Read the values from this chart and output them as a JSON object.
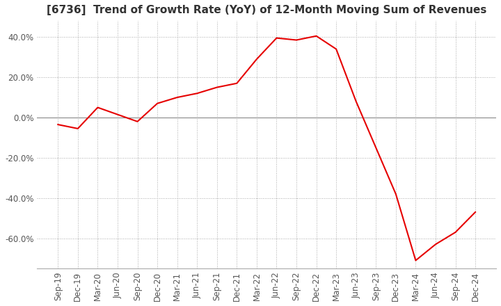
{
  "title": "[6736]  Trend of Growth Rate (YoY) of 12-Month Moving Sum of Revenues",
  "line_color": "#e60000",
  "background_color": "#ffffff",
  "grid_color": "#aaaaaa",
  "x_labels": [
    "Sep-19",
    "Dec-19",
    "Mar-20",
    "Jun-20",
    "Sep-20",
    "Dec-20",
    "Mar-21",
    "Jun-21",
    "Sep-21",
    "Dec-21",
    "Mar-22",
    "Jun-22",
    "Sep-22",
    "Dec-22",
    "Mar-23",
    "Jun-23",
    "Sep-23",
    "Dec-23",
    "Mar-24",
    "Jun-24",
    "Sep-24",
    "Dec-24"
  ],
  "y_values": [
    -3.5,
    -5.5,
    5.0,
    1.5,
    -2.0,
    7.0,
    10.0,
    12.0,
    15.0,
    17.0,
    29.0,
    39.5,
    38.5,
    40.5,
    34.0,
    8.0,
    -15.0,
    -38.0,
    -71.0,
    -63.0,
    -57.0,
    -47.0
  ],
  "ylim": [
    -75,
    48
  ],
  "yticks": [
    -60.0,
    -40.0,
    -20.0,
    0.0,
    20.0,
    40.0
  ],
  "title_fontsize": 11,
  "tick_fontsize": 8.5,
  "line_width": 1.5
}
